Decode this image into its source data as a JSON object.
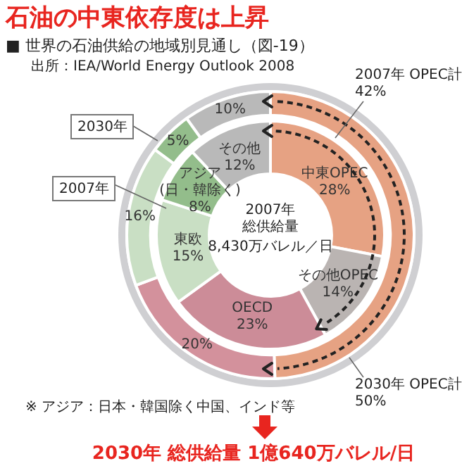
{
  "chart_data": [
    {
      "type": "donut",
      "title": "石油の中東依存度は上昇",
      "subtitle": "■ 世界の石油供給の地域別見通し（図-19）",
      "categories": [
        null,
        null,
        null,
        null,
        null
      ],
      "series": [
        {
          "name": "2030年",
          "values": [
            50,
            20,
            16,
            5,
            10
          ],
          "colors": [
            "#e6a283",
            "#d3919c",
            "#c9dfc4",
            "#93bd8b",
            "#b9b9b9"
          ],
          "value_labels": [
            null,
            "20%",
            "16%",
            "5%",
            "10%"
          ]
        }
      ],
      "legend": false,
      "annotations": [
        "出所：IEA/World Energy Outlook 2008",
        "2030年 OPEC計\n50%",
        "※ アジア：日本・韓国除く中国、インド等",
        "2030年 総供給量 1億640万バレル/日"
      ]
    },
    {
      "type": "donut",
      "categories": [
        "中東OPEC",
        "その他OPEC",
        "OECD",
        "東欧",
        "アジア\n(日・韓除く)",
        "その他"
      ],
      "series": [
        {
          "name": "2007年",
          "values": [
            28,
            14,
            23,
            15,
            8,
            12
          ],
          "colors": [
            "#e6a283",
            "#bab4b2",
            "#cc8c98",
            "#c9dfc4",
            "#93bd8b",
            "#b9b9b9"
          ],
          "value_labels": [
            "28%",
            "14%",
            "23%",
            "15%",
            "8%",
            "12%"
          ]
        }
      ],
      "legend": false,
      "annotations": [
        "2007年 OPEC計\n42%",
        "2007年総供給量",
        "8,430万バレル／日"
      ]
    }
  ]
}
